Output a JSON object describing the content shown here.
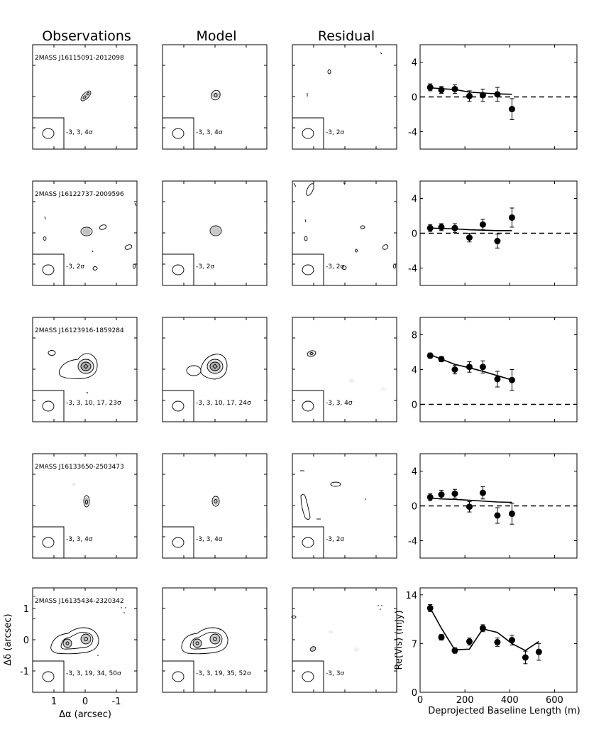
{
  "column_headers": [
    "Observations",
    "Model",
    "Residual"
  ],
  "rows": [
    {
      "source": "2MASS J16115091-2012098",
      "contours": {
        "observations": "-3, 3, 4σ",
        "model": "-3, 3, 4σ",
        "residual": "-3, 2σ"
      }
    },
    {
      "source": "2MASS J16122737-2009596",
      "contours": {
        "observations": "-3, 2σ",
        "model": "-3, 2σ",
        "residual": "-3, 2σ"
      }
    },
    {
      "source": "2MASS J16123916-1859284",
      "contours": {
        "observations": "-3, 3, 10, 17, 23σ",
        "model": "-3, 3, 10, 17, 24σ",
        "residual": "-3, 3, 4σ"
      }
    },
    {
      "source": "2MASS J16133650-2503473",
      "contours": {
        "observations": "-3, 3, 4σ",
        "model": "-3, 3, 4σ",
        "residual": "-3, 2σ"
      }
    },
    {
      "source": "2MASS J16135434-2320342",
      "contours": {
        "observations": "-3, 3, 19, 34, 50σ",
        "model": "-3, 3, 19, 35, 52σ",
        "residual": "-3, 3σ"
      }
    }
  ],
  "image_axes": {
    "xlabel": "Δα (arcsec)",
    "ylabel": "Δδ (arcsec)",
    "xticks": [
      "1",
      "0",
      "-1"
    ],
    "yticks": [
      "1",
      "0",
      "-1"
    ]
  },
  "chart_data": [
    {
      "type": "scatter",
      "title": "",
      "xlabel": "",
      "ylabel": "",
      "xlim": [
        0,
        700
      ],
      "ylim": [
        -6,
        6
      ],
      "yticks": [
        4,
        0,
        -4
      ],
      "ytick_labels": [
        "4",
        "0",
        "-4"
      ],
      "zero_line": true,
      "x": [
        45,
        95,
        155,
        220,
        280,
        345,
        410
      ],
      "y": [
        1.1,
        0.8,
        0.9,
        0.1,
        0.2,
        0.3,
        -1.4
      ],
      "yerr": [
        0.4,
        0.4,
        0.5,
        0.6,
        0.7,
        0.8,
        1.2
      ],
      "model_x": [
        45,
        95,
        155,
        220,
        280,
        345,
        410
      ],
      "model_y": [
        1.05,
        0.95,
        0.85,
        0.55,
        0.45,
        0.35,
        0.3
      ]
    },
    {
      "type": "scatter",
      "title": "",
      "xlabel": "",
      "ylabel": "",
      "xlim": [
        0,
        700
      ],
      "ylim": [
        -6,
        6
      ],
      "yticks": [
        4,
        0,
        -4
      ],
      "ytick_labels": [
        "4",
        "0",
        "-4"
      ],
      "zero_line": true,
      "x": [
        45,
        95,
        155,
        220,
        280,
        345,
        410
      ],
      "y": [
        0.6,
        0.7,
        0.6,
        -0.5,
        1.0,
        -0.9,
        1.8
      ],
      "yerr": [
        0.4,
        0.4,
        0.5,
        0.5,
        0.6,
        0.8,
        1.1
      ],
      "model_x": [
        45,
        95,
        155,
        220,
        280,
        345,
        410
      ],
      "model_y": [
        0.6,
        0.55,
        0.5,
        0.4,
        0.35,
        0.3,
        0.3
      ]
    },
    {
      "type": "scatter",
      "title": "",
      "xlabel": "",
      "ylabel": "",
      "xlim": [
        0,
        700
      ],
      "ylim": [
        -2,
        10
      ],
      "yticks": [
        8,
        4,
        0
      ],
      "ytick_labels": [
        "8",
        "4",
        "0"
      ],
      "zero_line": true,
      "x": [
        45,
        95,
        155,
        220,
        280,
        345,
        410
      ],
      "y": [
        5.6,
        5.2,
        4.0,
        4.3,
        4.3,
        2.9,
        2.8
      ],
      "yerr": [
        0.3,
        0.3,
        0.5,
        0.6,
        0.7,
        0.9,
        1.2
      ],
      "model_x": [
        45,
        95,
        155,
        220,
        280,
        345,
        410
      ],
      "model_y": [
        5.7,
        5.2,
        4.6,
        4.2,
        3.8,
        3.3,
        2.8
      ]
    },
    {
      "type": "scatter",
      "title": "",
      "xlabel": "",
      "ylabel": "",
      "xlim": [
        0,
        700
      ],
      "ylim": [
        -6,
        6
      ],
      "yticks": [
        4,
        0,
        -4
      ],
      "ytick_labels": [
        "4",
        "0",
        "-4"
      ],
      "zero_line": true,
      "x": [
        45,
        95,
        155,
        220,
        280,
        345,
        410
      ],
      "y": [
        1.0,
        1.3,
        1.4,
        -0.1,
        1.5,
        -1.1,
        -0.9
      ],
      "yerr": [
        0.4,
        0.5,
        0.5,
        0.6,
        0.7,
        0.9,
        1.2
      ],
      "model_x": [
        45,
        95,
        155,
        220,
        280,
        345,
        410
      ],
      "model_y": [
        0.9,
        0.8,
        0.75,
        0.65,
        0.55,
        0.45,
        0.4
      ]
    },
    {
      "type": "scatter",
      "title": "",
      "xlabel": "Deprojected Baseline Length (m)",
      "ylabel": "Re(Vis) (mJy)",
      "xlim": [
        0,
        700
      ],
      "ylim": [
        0,
        15
      ],
      "xticks": [
        0,
        200,
        400,
        600
      ],
      "xtick_labels": [
        "0",
        "200",
        "400",
        "600"
      ],
      "yticks": [
        14,
        7,
        0
      ],
      "ytick_labels": [
        "14",
        "7",
        "0"
      ],
      "zero_line": false,
      "x": [
        45,
        95,
        155,
        220,
        280,
        345,
        410,
        470,
        530
      ],
      "y": [
        12.1,
        7.9,
        6.0,
        7.3,
        9.2,
        7.2,
        7.5,
        5.0,
        5.8
      ],
      "yerr": [
        0.5,
        0.4,
        0.4,
        0.5,
        0.5,
        0.6,
        0.7,
        0.9,
        1.2
      ],
      "model_x": [
        45,
        95,
        155,
        220,
        280,
        345,
        410,
        470,
        530
      ],
      "model_y": [
        12.1,
        9.2,
        6.1,
        6.2,
        9.1,
        8.6,
        7.0,
        6.0,
        7.3
      ]
    }
  ]
}
